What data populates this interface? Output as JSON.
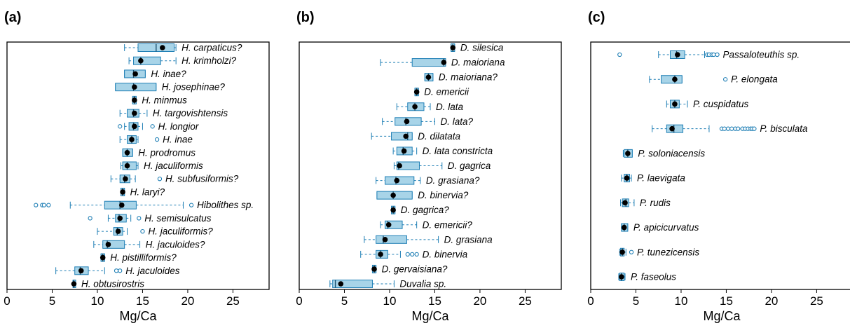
{
  "colors": {
    "box_fill": "#a8d4e8",
    "box_edge": "#1f7fb5",
    "whisker": "#1f7fb5",
    "mean": "#000000"
  },
  "chart_data": [
    {
      "type": "boxplot",
      "panel_label": "(a)",
      "xlabel": "Mg/Ca",
      "xlim": [
        0,
        29
      ],
      "xticks": [
        "0",
        "5",
        "10",
        "15",
        "20",
        "25"
      ],
      "orientation": "horizontal",
      "series": [
        {
          "label": "H. carpaticus?",
          "wlo": 13,
          "q1": 14.5,
          "med": 16.5,
          "q3": 18.5,
          "whi": 18.7,
          "mean": 17.2,
          "out": []
        },
        {
          "label": "H. krimholzi?",
          "wlo": 13.5,
          "q1": 14,
          "med": 14.8,
          "q3": 17,
          "whi": 18.7,
          "mean": 14.8,
          "out": []
        },
        {
          "label": "H. inae?",
          "wlo": 13,
          "q1": 13,
          "med": 14,
          "q3": 15.3,
          "whi": 15.3,
          "mean": 14.2,
          "out": []
        },
        {
          "label": "H. josephinae?",
          "wlo": 12,
          "q1": 12,
          "med": 14,
          "q3": 16.5,
          "whi": 16.5,
          "mean": 14.1,
          "out": []
        },
        {
          "label": "H. minmus",
          "wlo": 13.9,
          "q1": 13.9,
          "med": 14.1,
          "q3": 14.3,
          "whi": 14.3,
          "mean": 14.1,
          "out": []
        },
        {
          "label": "H. targovishtensis",
          "wlo": 12.5,
          "q1": 13.3,
          "med": 14,
          "q3": 14.6,
          "whi": 15.5,
          "mean": 14.1,
          "out": []
        },
        {
          "label": "H. longior",
          "wlo": 13,
          "q1": 13.5,
          "med": 14,
          "q3": 14.5,
          "whi": 15,
          "mean": 14.1,
          "out": [
            12.5,
            16.1
          ]
        },
        {
          "label": "H. inae",
          "wlo": 12.5,
          "q1": 13.3,
          "med": 13.8,
          "q3": 14.3,
          "whi": 14.5,
          "mean": 13.8,
          "out": [
            16.6
          ]
        },
        {
          "label": "H. prodromus",
          "wlo": 12.8,
          "q1": 12.8,
          "med": 13.3,
          "q3": 13.9,
          "whi": 13.9,
          "mean": 13.3,
          "out": []
        },
        {
          "label": "H. jaculiformis",
          "wlo": 12.6,
          "q1": 12.8,
          "med": 13.3,
          "q3": 14.3,
          "whi": 14.5,
          "mean": 13.3,
          "out": []
        },
        {
          "label": "H. subfusiformis?",
          "wlo": 11.5,
          "q1": 12.5,
          "med": 13,
          "q3": 13.6,
          "whi": 14.2,
          "mean": 13.1,
          "out": [
            16.9
          ]
        },
        {
          "label": "H. laryi?",
          "wlo": 12.6,
          "q1": 12.6,
          "med": 12.8,
          "q3": 13,
          "whi": 13,
          "mean": 12.8,
          "out": []
        },
        {
          "label": "Hibolithes sp.",
          "wlo": 7,
          "q1": 10.8,
          "med": 12.5,
          "q3": 14.3,
          "whi": 19.5,
          "mean": 12.7,
          "out": [
            3.2,
            3.9,
            4.1,
            4.6,
            20.4
          ]
        },
        {
          "label": "H. semisulcatus",
          "wlo": 11.2,
          "q1": 12,
          "med": 12.4,
          "q3": 13.2,
          "whi": 13.7,
          "mean": 12.5,
          "out": [
            9.2,
            14.6
          ]
        },
        {
          "label": "H. jaculiformis?",
          "wlo": 10,
          "q1": 11.8,
          "med": 12.2,
          "q3": 12.8,
          "whi": 13.3,
          "mean": 12.3,
          "out": [
            15
          ]
        },
        {
          "label": "H. jaculoides?",
          "wlo": 9.6,
          "q1": 10.6,
          "med": 11.1,
          "q3": 13,
          "whi": 14.7,
          "mean": 11.2,
          "out": []
        },
        {
          "label": "H. pistilliformis?",
          "wlo": 10.4,
          "q1": 10.4,
          "med": 10.6,
          "q3": 10.8,
          "whi": 10.8,
          "mean": 10.6,
          "out": []
        },
        {
          "label": "H. jaculoides",
          "wlo": 5.4,
          "q1": 7.5,
          "med": 8.1,
          "q3": 9,
          "whi": 10.8,
          "mean": 8.2,
          "out": [
            12.1,
            12.5
          ]
        },
        {
          "label": "H. obtusirostris",
          "wlo": 7.3,
          "q1": 7.3,
          "med": 7.4,
          "q3": 7.6,
          "whi": 7.6,
          "mean": 7.4,
          "out": []
        }
      ]
    },
    {
      "type": "boxplot",
      "panel_label": "(b)",
      "xlabel": "Mg/Ca",
      "xlim": [
        0,
        29
      ],
      "xticks": [
        "0",
        "5",
        "10",
        "15",
        "20",
        "25"
      ],
      "orientation": "horizontal",
      "series": [
        {
          "label": "D. silesica",
          "wlo": 16.8,
          "q1": 16.8,
          "med": 17,
          "q3": 17.2,
          "whi": 17.2,
          "mean": 17,
          "out": []
        },
        {
          "label": "D. maioriana",
          "wlo": 9,
          "q1": 12.5,
          "med": 16,
          "q3": 16.2,
          "whi": 16.2,
          "mean": 16,
          "out": []
        },
        {
          "label": "D. maioriana?",
          "wlo": 13.9,
          "q1": 13.9,
          "med": 14.3,
          "q3": 14.8,
          "whi": 14.8,
          "mean": 14.3,
          "out": []
        },
        {
          "label": "D. emericii",
          "wlo": 12.8,
          "q1": 12.8,
          "med": 13,
          "q3": 13.2,
          "whi": 13.2,
          "mean": 13,
          "out": []
        },
        {
          "label": "D. lata",
          "wlo": 10.8,
          "q1": 12,
          "med": 12.8,
          "q3": 13.8,
          "whi": 14.5,
          "mean": 12.8,
          "out": []
        },
        {
          "label": "D. lata?",
          "wlo": 9.2,
          "q1": 10.6,
          "med": 11.8,
          "q3": 13.5,
          "whi": 15,
          "mean": 11.9,
          "out": []
        },
        {
          "label": "D. dilatata",
          "wlo": 8,
          "q1": 10.2,
          "med": 12,
          "q3": 12.5,
          "whi": 12.5,
          "mean": 11.8,
          "out": []
        },
        {
          "label": "D. lata constricta",
          "wlo": 10.4,
          "q1": 10.8,
          "med": 11.5,
          "q3": 12.5,
          "whi": 13,
          "mean": 11.6,
          "out": []
        },
        {
          "label": "D. gagrica",
          "wlo": 10.5,
          "q1": 10.8,
          "med": 11,
          "q3": 13.3,
          "whi": 15.8,
          "mean": 11.1,
          "out": []
        },
        {
          "label": "D. grasiana?",
          "wlo": 8.5,
          "q1": 9.5,
          "med": 10.7,
          "q3": 12.7,
          "whi": 13.4,
          "mean": 10.8,
          "out": []
        },
        {
          "label": "D. binervia?",
          "wlo": 8.6,
          "q1": 8.6,
          "med": 10.4,
          "q3": 12.5,
          "whi": 12.5,
          "mean": 10.4,
          "out": []
        },
        {
          "label": "D. gagrica?",
          "wlo": 10.2,
          "q1": 10.2,
          "med": 10.4,
          "q3": 10.6,
          "whi": 10.6,
          "mean": 10.4,
          "out": []
        },
        {
          "label": "D. emericii?",
          "wlo": 9,
          "q1": 9.5,
          "med": 9.8,
          "q3": 11.4,
          "whi": 13,
          "mean": 9.9,
          "out": []
        },
        {
          "label": "D. grasiana",
          "wlo": 7.2,
          "q1": 8.5,
          "med": 9.3,
          "q3": 11.9,
          "whi": 15.4,
          "mean": 9.5,
          "out": []
        },
        {
          "label": "D. binervia",
          "wlo": 6.8,
          "q1": 8.5,
          "med": 9,
          "q3": 9.8,
          "whi": 11.2,
          "mean": 9,
          "out": [
            12,
            12.5,
            13
          ]
        },
        {
          "label": "D. gervaisiana?",
          "wlo": 8.1,
          "q1": 8.1,
          "med": 8.3,
          "q3": 8.5,
          "whi": 8.5,
          "mean": 8.3,
          "out": []
        },
        {
          "label": "Duvalia sp.",
          "wlo": 3.4,
          "q1": 3.7,
          "med": 4,
          "q3": 8.1,
          "whi": 10.5,
          "mean": 4.6,
          "out": []
        }
      ]
    },
    {
      "type": "boxplot",
      "panel_label": "(c)",
      "xlabel": "Mg/Ca",
      "xlim": [
        0,
        29
      ],
      "xticks": [
        "0",
        "5",
        "10",
        "15",
        "20",
        "25"
      ],
      "orientation": "horizontal",
      "series": [
        {
          "label": "Passaloteuthis sp.",
          "wlo": 7.5,
          "q1": 8.8,
          "med": 9.5,
          "q3": 10.4,
          "whi": 12.6,
          "mean": 9.6,
          "out": [
            3.2,
            12.9,
            13.1,
            13.4,
            13.6,
            14
          ]
        },
        {
          "label": "P. elongata",
          "wlo": 6.5,
          "q1": 7.8,
          "med": 9.3,
          "q3": 10.1,
          "whi": 10.1,
          "mean": 9.3,
          "out": [
            14.9
          ]
        },
        {
          "label": "P. cuspidatus",
          "wlo": 8.4,
          "q1": 8.8,
          "med": 9.3,
          "q3": 9.8,
          "whi": 10.7,
          "mean": 9.3,
          "out": []
        },
        {
          "label": "P. bisculata",
          "wlo": 6.8,
          "q1": 8.4,
          "med": 9.2,
          "q3": 10.2,
          "whi": 13.1,
          "mean": 9,
          "out": [
            14.5,
            14.8,
            15.2,
            15.6,
            16,
            16.3,
            16.8,
            17.1,
            17.4,
            17.7,
            17.9,
            18.1
          ]
        },
        {
          "label": "P. soloniacensis",
          "wlo": 3.6,
          "q1": 3.7,
          "med": 4.1,
          "q3": 4.6,
          "whi": 4.6,
          "mean": 4.1,
          "out": []
        },
        {
          "label": "P. laevigata",
          "wlo": 3.4,
          "q1": 3.7,
          "med": 4,
          "q3": 4.3,
          "whi": 4.5,
          "mean": 4,
          "out": []
        },
        {
          "label": "P. rudis",
          "wlo": 3.3,
          "q1": 3.5,
          "med": 3.9,
          "q3": 4.2,
          "whi": 4.8,
          "mean": 3.8,
          "out": []
        },
        {
          "label": "P. apicicurvatus",
          "wlo": 3.4,
          "q1": 3.4,
          "med": 3.7,
          "q3": 4.1,
          "whi": 4.1,
          "mean": 3.7,
          "out": []
        },
        {
          "label": "P. tunezicensis",
          "wlo": 3.2,
          "q1": 3.3,
          "med": 3.5,
          "q3": 3.7,
          "whi": 3.9,
          "mean": 3.5,
          "out": [
            4.5
          ]
        },
        {
          "label": "P. faseolus",
          "wlo": 3.1,
          "q1": 3.2,
          "med": 3.4,
          "q3": 3.7,
          "whi": 3.8,
          "mean": 3.4,
          "out": []
        }
      ]
    }
  ]
}
